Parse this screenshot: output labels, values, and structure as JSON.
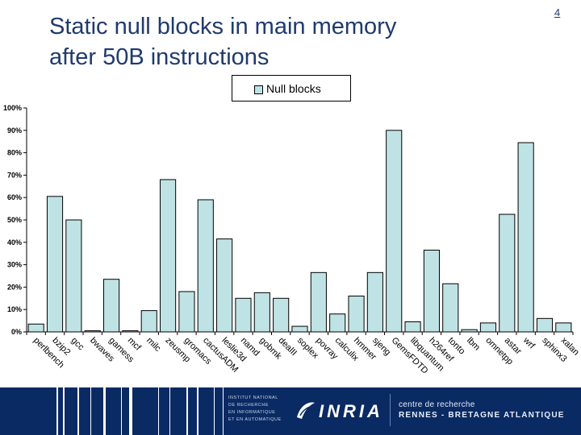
{
  "slide": {
    "title_line1": "Static null blocks in main memory",
    "title_line2": "after 50B instructions",
    "number": "4"
  },
  "chart_data": {
    "type": "bar",
    "title": "Static null blocks in main memory after 50B instructions",
    "legend": [
      "Null blocks"
    ],
    "legend_position": "top-center",
    "xlabel": "",
    "ylabel": "",
    "ylim": [
      0,
      100
    ],
    "yticks": [
      "0%",
      "10%",
      "20%",
      "30%",
      "40%",
      "50%",
      "60%",
      "70%",
      "80%",
      "90%",
      "100%"
    ],
    "grid": false,
    "bar_color": "#bfe3e5",
    "categories": [
      "perlbench",
      "bzip2",
      "gcc",
      "bwaves",
      "gamess",
      "mcf",
      "milc",
      "zeusmp",
      "gromacs",
      "cactusADM",
      "leslie3d",
      "namd",
      "gobmk",
      "dealII",
      "soplex",
      "povray",
      "calculix",
      "hmmer",
      "sjeng",
      "GemsFDTD",
      "libquantum",
      "h264ref",
      "tonto",
      "lbm",
      "omnetpp",
      "astar",
      "wrf",
      "sphinx3",
      "xalan"
    ],
    "series": [
      {
        "name": "Null blocks",
        "values": [
          3.5,
          60.5,
          50,
          0.5,
          23.5,
          0.5,
          9.5,
          68,
          18,
          59,
          41.5,
          15,
          17.5,
          15,
          2.5,
          26.5,
          8,
          16,
          26.5,
          90,
          4.5,
          36.5,
          21.5,
          1,
          4,
          52.5,
          84.5,
          6,
          4
        ]
      }
    ]
  },
  "footer": {
    "institute_lines": [
      "INSTITUT NATIONAL",
      "DE RECHERCHE",
      "EN INFORMATIQUE",
      "ET EN AUTOMATIQUE"
    ],
    "brand": "INRIA",
    "centre_line1": "centre de recherche",
    "centre_line2": "RENNES - BRETAGNE ATLANTIQUE"
  }
}
